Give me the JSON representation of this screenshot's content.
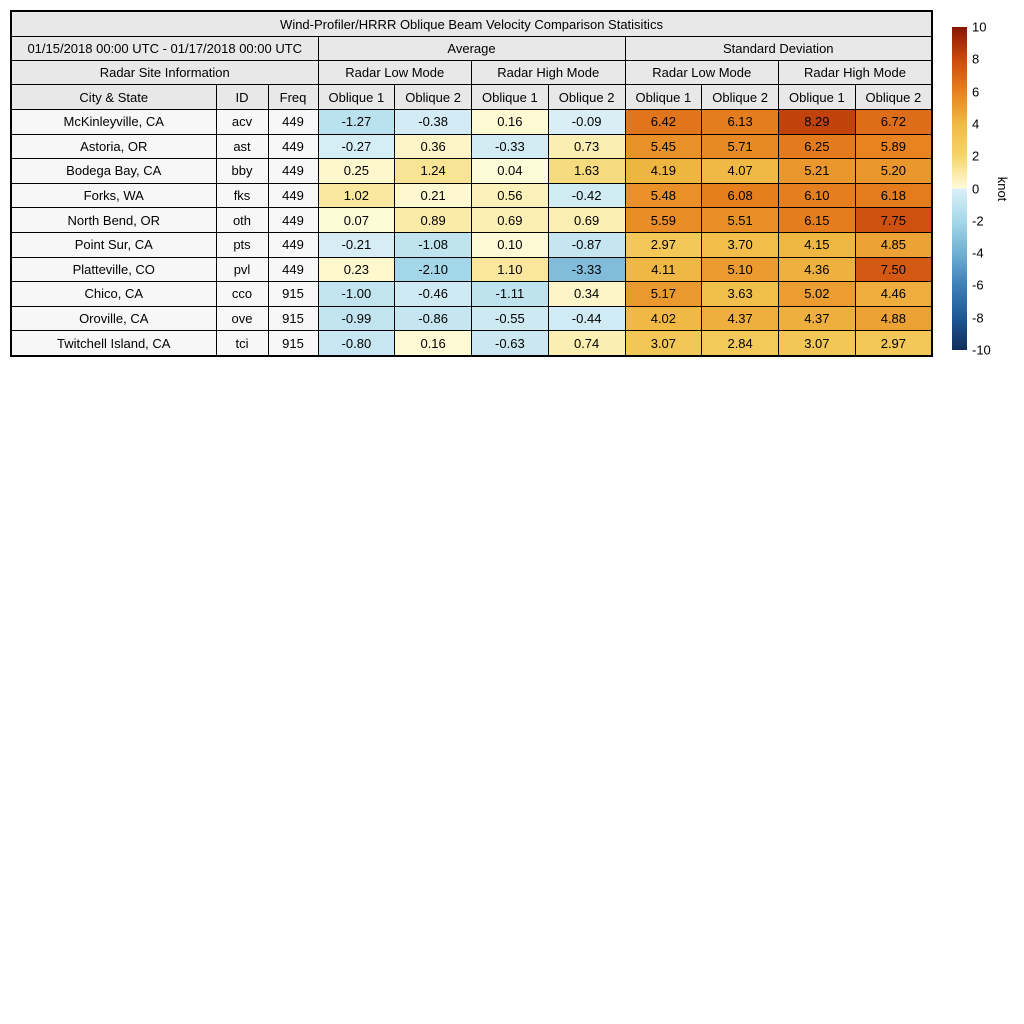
{
  "chart_data": {
    "type": "table",
    "title": "Wind-Profiler/HRRR Oblique Beam Velocity Comparison Statisitics",
    "date_range": "01/15/2018 00:00 UTC - 01/17/2018 00:00 UTC",
    "col_groups": [
      "Average",
      "Standard Deviation"
    ],
    "site_info_label": "Radar Site Information",
    "mode_groups": [
      "Radar Low Mode",
      "Radar High Mode",
      "Radar Low Mode",
      "Radar High Mode"
    ],
    "site_columns": [
      "City & State",
      "ID",
      "Freq"
    ],
    "value_columns": [
      "Oblique 1",
      "Oblique 2",
      "Oblique 1",
      "Oblique 2",
      "Oblique 1",
      "Oblique 2",
      "Oblique 1",
      "Oblique 2"
    ],
    "rows": [
      {
        "city": "McKinleyville, CA",
        "id": "acv",
        "freq": "449",
        "values": [
          -1.27,
          -0.38,
          0.16,
          -0.09,
          6.42,
          6.13,
          8.29,
          6.72
        ]
      },
      {
        "city": "Astoria, OR",
        "id": "ast",
        "freq": "449",
        "values": [
          -0.27,
          0.36,
          -0.33,
          0.73,
          5.45,
          5.71,
          6.25,
          5.89
        ]
      },
      {
        "city": "Bodega Bay, CA",
        "id": "bby",
        "freq": "449",
        "values": [
          0.25,
          1.24,
          0.04,
          1.63,
          4.19,
          4.07,
          5.21,
          5.2
        ]
      },
      {
        "city": "Forks, WA",
        "id": "fks",
        "freq": "449",
        "values": [
          1.02,
          0.21,
          0.56,
          -0.42,
          5.48,
          6.08,
          6.1,
          6.18
        ]
      },
      {
        "city": "North Bend, OR",
        "id": "oth",
        "freq": "449",
        "values": [
          0.07,
          0.89,
          0.69,
          0.69,
          5.59,
          5.51,
          6.15,
          7.75
        ]
      },
      {
        "city": "Point Sur, CA",
        "id": "pts",
        "freq": "449",
        "values": [
          -0.21,
          -1.08,
          0.1,
          -0.87,
          2.97,
          3.7,
          4.15,
          4.85
        ]
      },
      {
        "city": "Platteville, CO",
        "id": "pvl",
        "freq": "449",
        "values": [
          0.23,
          -2.1,
          1.1,
          -3.33,
          4.11,
          5.1,
          4.36,
          7.5
        ]
      },
      {
        "city": "Chico, CA",
        "id": "cco",
        "freq": "915",
        "values": [
          -1.0,
          -0.46,
          -1.11,
          0.34,
          5.17,
          3.63,
          5.02,
          4.46
        ]
      },
      {
        "city": "Oroville, CA",
        "id": "ove",
        "freq": "915",
        "values": [
          -0.99,
          -0.86,
          -0.55,
          -0.44,
          4.02,
          4.37,
          4.37,
          4.88
        ]
      },
      {
        "city": "Twitchell Island, CA",
        "id": "tci",
        "freq": "915",
        "values": [
          -0.8,
          0.16,
          -0.63,
          0.74,
          3.07,
          2.84,
          3.07,
          2.97
        ]
      }
    ],
    "colorbar": {
      "label": "knot",
      "min": -10,
      "max": 10,
      "ticks": [
        10,
        8,
        6,
        4,
        2,
        0,
        -2,
        -4,
        -6,
        -8,
        -10
      ],
      "stops": [
        [
          -10,
          "#132e5a"
        ],
        [
          -8,
          "#1e5897"
        ],
        [
          -6,
          "#3c80ba"
        ],
        [
          -4,
          "#6fb0d2"
        ],
        [
          -2,
          "#a6d8e9"
        ],
        [
          -0.001,
          "#dcf0f6"
        ],
        [
          0.001,
          "#fefcdb"
        ],
        [
          2,
          "#f6d56a"
        ],
        [
          4,
          "#f0ba45"
        ],
        [
          6,
          "#e6811f"
        ],
        [
          8,
          "#cc4a0e"
        ],
        [
          10,
          "#871500"
        ]
      ]
    },
    "colors": {
      "header_bg": "#e8e8e8",
      "site_cell_bg": "#f7f7f7",
      "border": "#000000"
    }
  }
}
